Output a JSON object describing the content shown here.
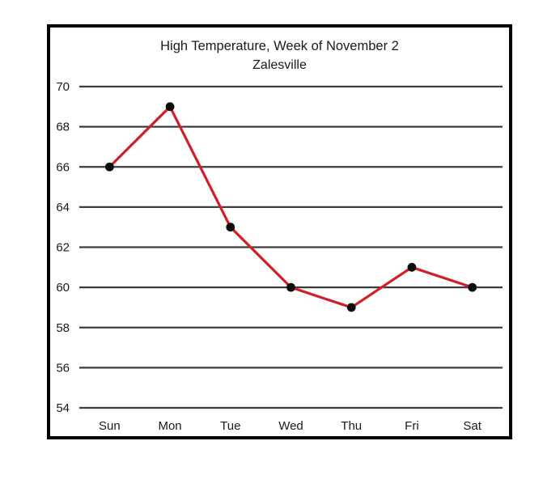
{
  "chart_data": {
    "type": "line",
    "title": "High Temperature, Week of November 2",
    "subtitle": "Zalesville",
    "categories": [
      "Sun",
      "Mon",
      "Tue",
      "Wed",
      "Thu",
      "Fri",
      "Sat"
    ],
    "values": [
      66,
      69,
      63,
      60,
      59,
      61,
      60
    ],
    "yticks": [
      54,
      56,
      58,
      60,
      62,
      64,
      66,
      68,
      70
    ],
    "ylim": [
      54,
      70
    ],
    "xlabel": "",
    "ylabel": "",
    "grid": true,
    "legend": "none",
    "colors": {
      "line": "#d11f26",
      "marker": "#0d0d0d",
      "gridline": "#3d3d3d",
      "frame": "#000000",
      "text": "#1a1a1a"
    }
  }
}
